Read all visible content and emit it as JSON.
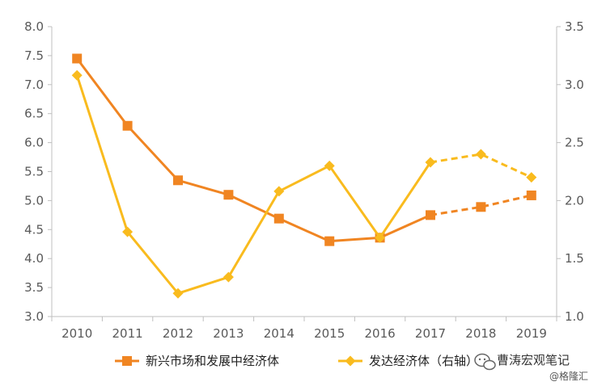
{
  "chart_data": {
    "type": "line",
    "categories": [
      "2010",
      "2011",
      "2012",
      "2013",
      "2014",
      "2015",
      "2016",
      "2017",
      "2018",
      "2019"
    ],
    "y_left": {
      "range": [
        3.0,
        8.0
      ],
      "ticks": [
        "3.0",
        "3.5",
        "4.0",
        "4.5",
        "5.0",
        "5.5",
        "6.0",
        "6.5",
        "7.0",
        "7.5",
        "8.0"
      ]
    },
    "y_right": {
      "range": [
        1.0,
        3.5
      ],
      "ticks": [
        "1.0",
        "1.5",
        "2.0",
        "2.5",
        "3.0",
        "3.5"
      ]
    },
    "series": [
      {
        "name": "新兴市场和发展中经济体",
        "axis": "left",
        "color": "#F08522",
        "marker": "square",
        "values": [
          7.45,
          6.29,
          5.35,
          5.1,
          4.69,
          4.3,
          4.36,
          4.75,
          4.89,
          5.09
        ],
        "projected_from": "2017"
      },
      {
        "name": "发达经济体（右轴）",
        "axis": "right",
        "color": "#F9BB1E",
        "marker": "diamond",
        "values": [
          3.08,
          1.73,
          1.2,
          1.34,
          2.08,
          2.3,
          1.68,
          2.33,
          2.4,
          2.2
        ],
        "projected_from": "2017"
      }
    ],
    "grid": false,
    "legend_position": "bottom"
  },
  "watermark": {
    "name": "曹涛宏观笔记",
    "sub": "@格隆汇",
    "icon": "wechat-icon"
  }
}
